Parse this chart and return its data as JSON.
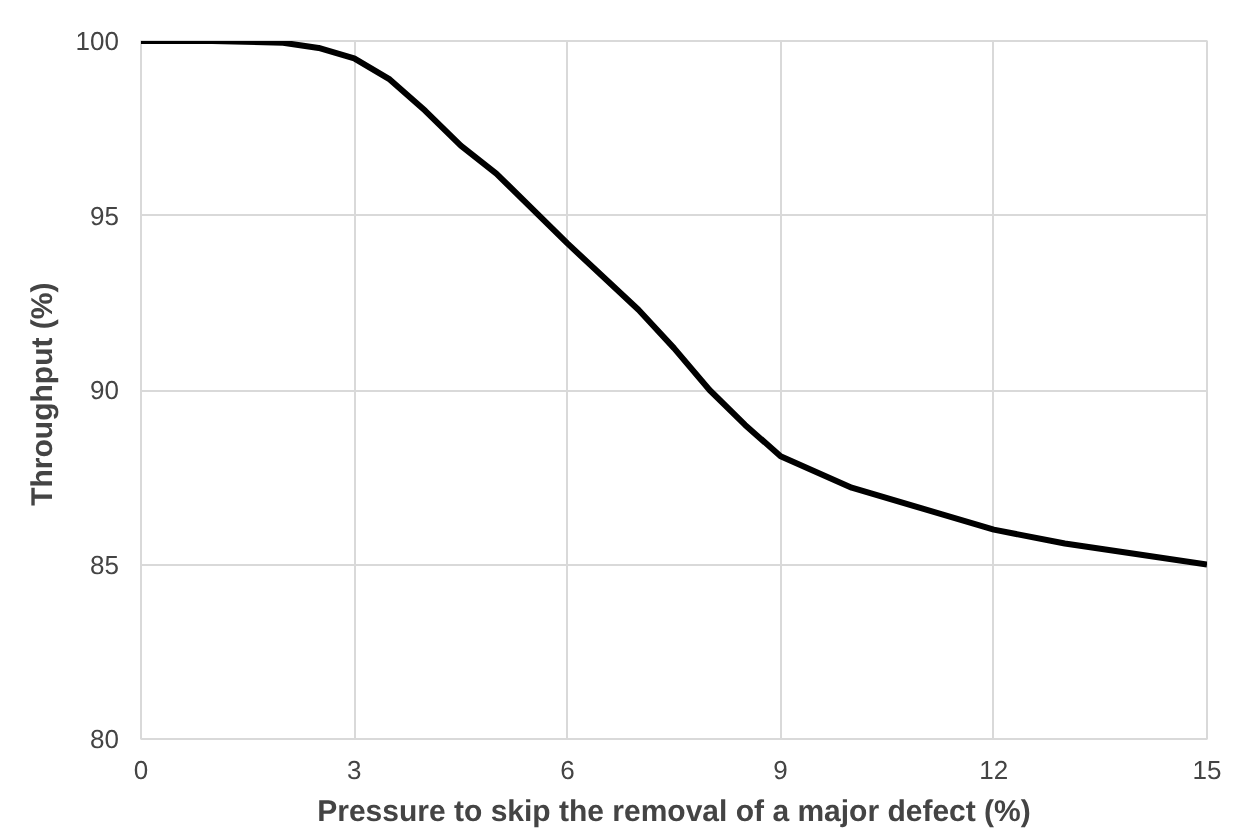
{
  "chart_data": {
    "type": "line",
    "xlabel": "Pressure to skip the removal of a major defect (%)",
    "ylabel": "Throughput  (%)",
    "x": [
      0,
      1,
      2,
      2.5,
      3,
      3.5,
      4,
      4.5,
      5,
      6,
      7,
      7.5,
      8,
      8.5,
      9,
      10,
      11,
      12,
      13,
      14,
      15
    ],
    "series": [
      {
        "color": "#000000",
        "values": [
          100,
          100,
          99.95,
          99.8,
          99.5,
          98.9,
          98.0,
          97.0,
          96.2,
          94.2,
          92.3,
          91.2,
          90.0,
          89.0,
          88.1,
          87.2,
          86.6,
          86.0,
          85.6,
          85.3,
          85.0
        ]
      }
    ],
    "xlim": [
      0,
      15
    ],
    "xticks": [
      0,
      3,
      6,
      9,
      12,
      15
    ],
    "ylim": [
      80,
      100
    ],
    "yticks": [
      80,
      85,
      90,
      95,
      100
    ],
    "grid": true,
    "marker": "none",
    "line_style": "solid"
  }
}
